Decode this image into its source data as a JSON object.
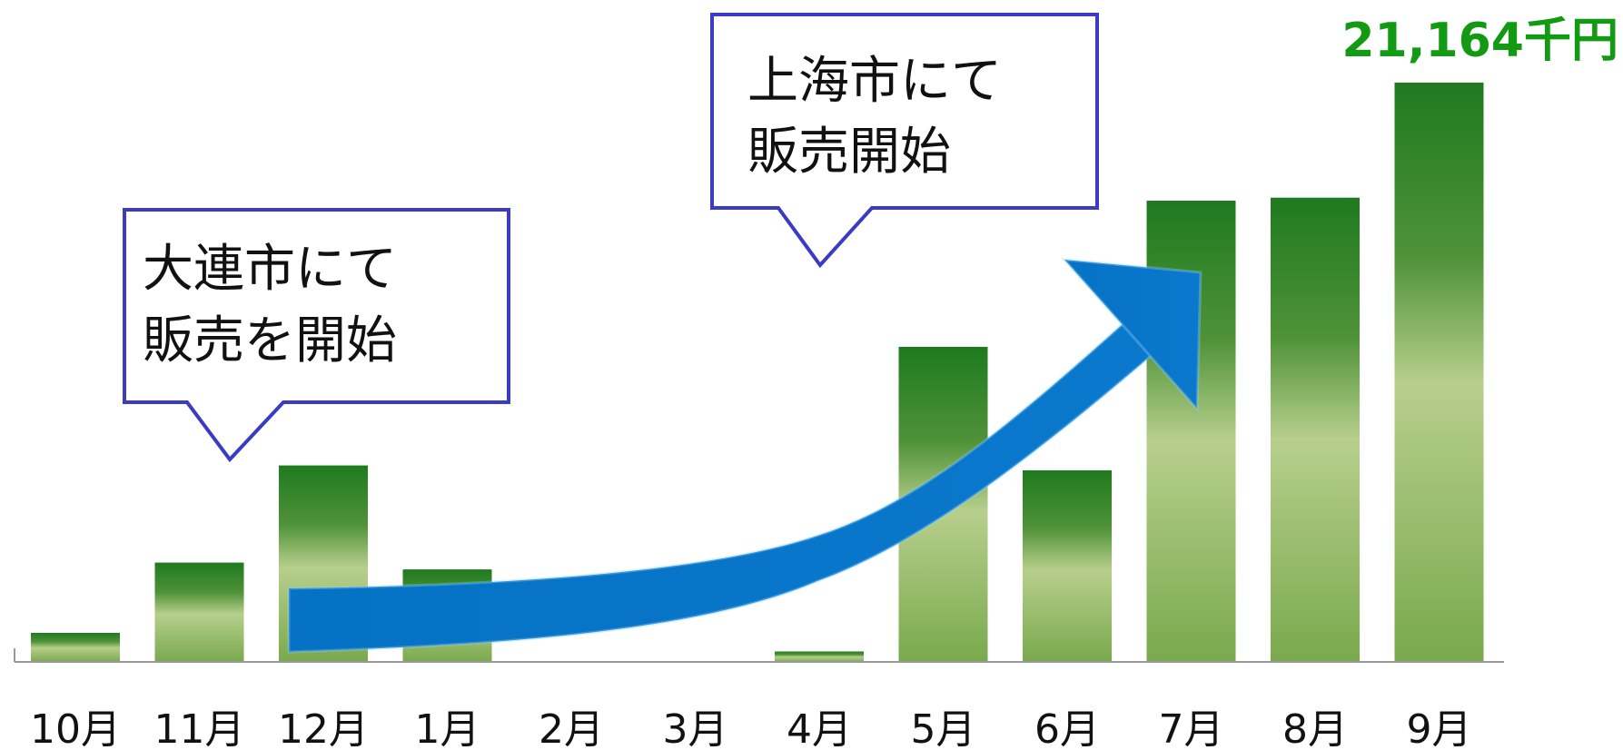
{
  "chart_data": {
    "type": "bar",
    "categories": [
      "10月",
      "11月",
      "12月",
      "1月",
      "2月",
      "3月",
      "4月",
      "5月",
      "6月",
      "7月",
      "8月",
      "9月"
    ],
    "values": [
      1060,
      3630,
      7180,
      3380,
      0,
      0,
      380,
      11510,
      7000,
      16850,
      16960,
      21164
    ],
    "ylim": [
      0,
      22000
    ],
    "max_label": "21,164千円",
    "colors": {
      "bar_dark": "#1f7a1f",
      "bar_mid": "#5e9e3c",
      "bar_light": "#b7cf8c",
      "label_green": "#129a12",
      "arrow": "#0672c6",
      "callout_border": "#3b3bc4"
    },
    "annotations": [
      {
        "lines": [
          "大連市にて",
          "販売を開始"
        ],
        "points_to": "11月"
      },
      {
        "lines": [
          "上海市にて",
          "販売開始"
        ],
        "points_to": "4月"
      }
    ],
    "trend_arrow": true
  }
}
